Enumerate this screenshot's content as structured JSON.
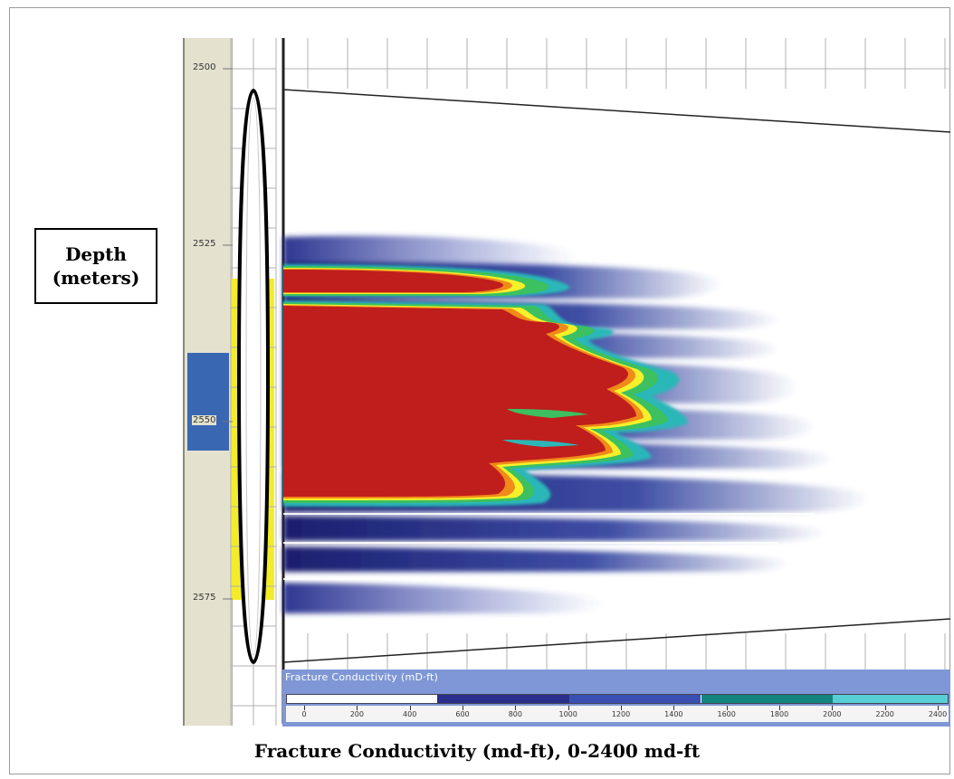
{
  "depth_label": {
    "line1": "Depth",
    "line2": "(meters)"
  },
  "caption": "Fracture Conductivity (md-ft), 0-2400 md-ft",
  "legend_title": "Fracture Conductivity (mD·ft)",
  "colors": {
    "red": "#c01d1d",
    "orange": "#f08a1a",
    "yellow": "#f6f02a",
    "green": "#3cc060",
    "cyan": "#58cfd4",
    "teal": "#1a8f8a",
    "blue": "#283a9a",
    "navy": "#1a1d6e",
    "perforation": "#f3ec2a",
    "zone": "#3a67b2"
  },
  "chart_data": {
    "type": "heatmap",
    "ylabel": "Depth (meters)",
    "y_ticks": [
      "2500",
      "2525",
      "2550",
      "2575"
    ],
    "ylim": [
      2495,
      2590
    ],
    "color_scale": {
      "title": "Fracture Conductivity (mD·ft)",
      "range": [
        0,
        2400
      ],
      "ticks": [
        "0",
        "200",
        "400",
        "600",
        "800",
        "1000",
        "1200",
        "1400",
        "1600",
        "1800",
        "2000",
        "2200",
        "2400"
      ],
      "bands": [
        {
          "from": 0,
          "to": 500,
          "color": "#ffffff"
        },
        {
          "from": 500,
          "to": 1000,
          "color": "#2a2f8c"
        },
        {
          "from": 1000,
          "to": 1500,
          "color": "#3a4fb2"
        },
        {
          "from": 1500,
          "to": 2000,
          "color": "#14857e"
        },
        {
          "from": 2000,
          "to": 2400,
          "color": "#58cfd4"
        }
      ]
    },
    "perforation_interval": [
      2530,
      2575
    ],
    "zone_interval": [
      2540,
      2553
    ]
  }
}
